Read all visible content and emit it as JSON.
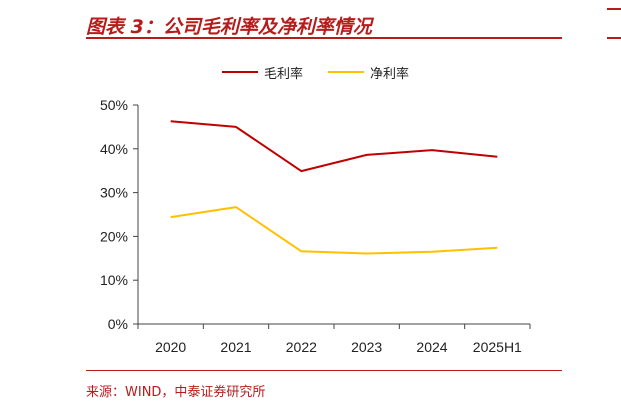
{
  "header": {
    "title": "图表 3：公司毛利率及净利率情况"
  },
  "footer": {
    "source": "来源：WIND，中泰证券研究所"
  },
  "colors": {
    "accent": "#b71c1c",
    "gross_margin": "#c00000",
    "net_margin": "#ffc000",
    "axis": "#444444"
  },
  "chart_data": {
    "type": "line",
    "title": "",
    "xlabel": "",
    "ylabel": "",
    "categories": [
      "2020",
      "2021",
      "2022",
      "2023",
      "2024",
      "2025H1"
    ],
    "ylim": [
      0,
      50
    ],
    "yticks": [
      "0%",
      "10%",
      "20%",
      "30%",
      "40%",
      "50%"
    ],
    "grid": false,
    "legend_position": "top-center",
    "series": [
      {
        "name": "毛利率",
        "color": "#c00000",
        "values": [
          46.3,
          45.0,
          34.9,
          38.6,
          39.7,
          38.2
        ]
      },
      {
        "name": "净利率",
        "color": "#ffc000",
        "values": [
          24.4,
          26.7,
          16.6,
          16.1,
          16.5,
          17.4
        ]
      }
    ]
  }
}
